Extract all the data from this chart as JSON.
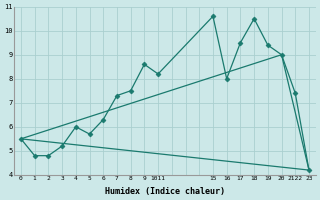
{
  "bg_color": "#cce8e8",
  "line_color": "#1a7a6e",
  "grid_color": "#aacfcf",
  "xlabel": "Humidex (Indice chaleur)",
  "xlabels": [
    "0",
    "1",
    "2",
    "3",
    "4",
    "5",
    "6",
    "7",
    "8",
    "9",
    "1011",
    "",
    "",
    "",
    "15",
    "16",
    "17",
    "18",
    "19",
    "20",
    "21",
    "2223"
  ],
  "ylim": [
    4,
    11
  ],
  "yticks": [
    4,
    5,
    6,
    7,
    8,
    9,
    10,
    11
  ],
  "n_cols": 22,
  "line1_xi": [
    0,
    1,
    2,
    3,
    4,
    5,
    6,
    7,
    8,
    9,
    10,
    14,
    15,
    16,
    17,
    18,
    19,
    20,
    21
  ],
  "line1_y": [
    5.5,
    4.8,
    4.8,
    5.2,
    6.0,
    5.7,
    6.3,
    7.3,
    7.5,
    8.6,
    8.2,
    10.6,
    8.0,
    9.5,
    10.5,
    9.4,
    9.0,
    7.4,
    4.2
  ],
  "line2_xi": [
    0,
    21
  ],
  "line2_y": [
    5.5,
    4.2
  ],
  "line3_xi": [
    0,
    19,
    21
  ],
  "line3_y": [
    5.5,
    9.0,
    4.2
  ],
  "marker_xi": [
    0,
    1,
    2,
    3,
    4,
    5,
    6,
    7,
    8,
    9,
    10,
    14,
    15,
    16,
    17,
    18,
    19,
    20,
    21
  ],
  "marker_y": [
    5.5,
    4.8,
    4.8,
    5.2,
    6.0,
    5.7,
    6.3,
    7.3,
    7.5,
    8.6,
    8.2,
    10.6,
    8.0,
    9.5,
    10.5,
    9.4,
    9.0,
    7.4,
    4.2
  ],
  "xtick_pos": [
    0,
    1,
    2,
    3,
    4,
    5,
    6,
    7,
    8,
    9,
    10,
    14,
    15,
    16,
    17,
    18,
    19,
    20,
    21
  ],
  "xtick_labels": [
    "0",
    "1",
    "2",
    "3",
    "4",
    "5",
    "6",
    "7",
    "8",
    "9",
    "1011",
    "15",
    "16",
    "17",
    "18",
    "19",
    "20",
    "2122",
    "23"
  ]
}
